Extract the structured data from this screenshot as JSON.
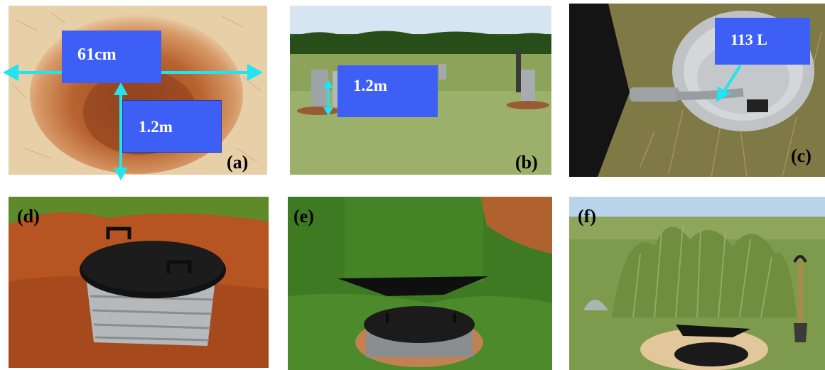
{
  "panels": {
    "a": {
      "label": "(a)",
      "annotations": {
        "diameter": "61cm",
        "depth": "1.2m"
      }
    },
    "b": {
      "label": "(b)",
      "annotations": {
        "depth": "1.2m"
      }
    },
    "c": {
      "label": "(c)",
      "annotations": {
        "volume": "113 L"
      }
    },
    "d": {
      "label": "(d)"
    },
    "e": {
      "label": "(e)"
    },
    "f": {
      "label": "(f)"
    }
  },
  "colors": {
    "annotation_box": "#3d5ff5",
    "arrow": "#22e3ee",
    "label_text": "#000000"
  }
}
